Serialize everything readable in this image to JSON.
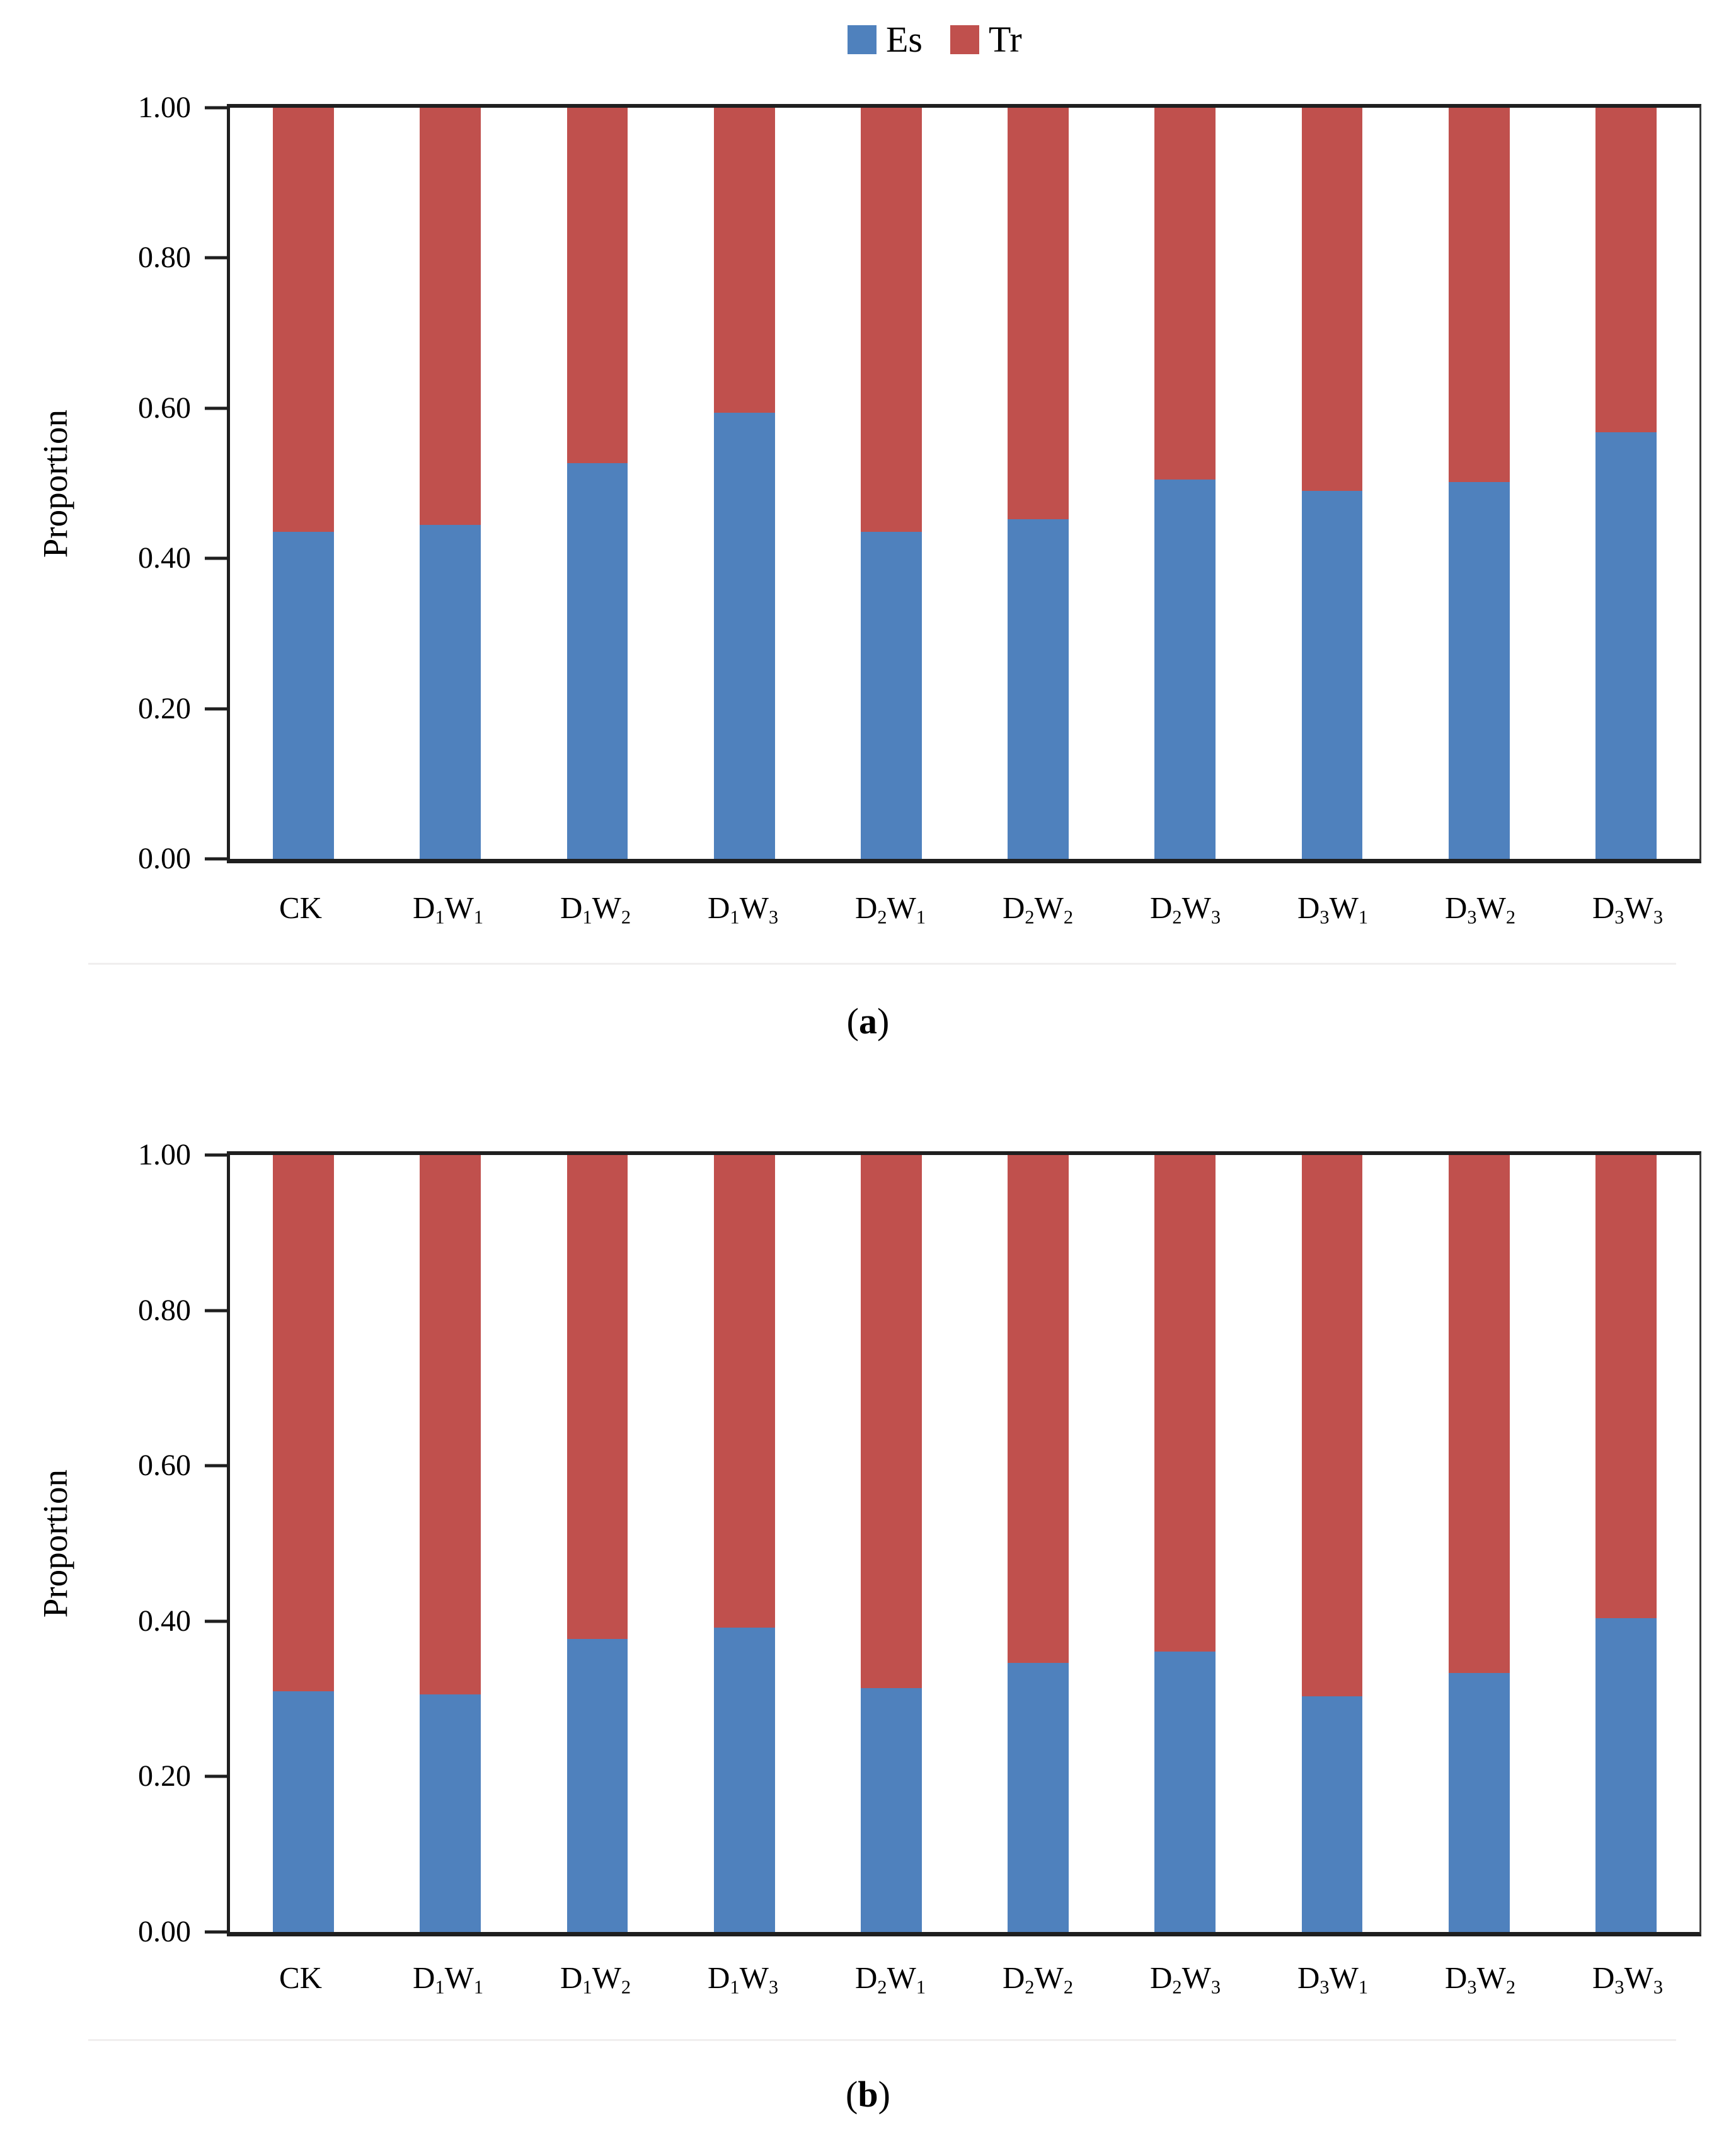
{
  "figure": {
    "background": "#ffffff"
  },
  "legend": {
    "position": "top-center",
    "items": [
      {
        "label": "Es",
        "color": "#4f81bd"
      },
      {
        "label": "Tr",
        "color": "#c0504d"
      }
    ]
  },
  "chart_data": [
    {
      "id": "a",
      "type": "bar",
      "stacked": true,
      "caption": "(a)",
      "ylabel": "Proportion",
      "ylim": [
        0,
        1
      ],
      "grid": false,
      "legend_position": "top-center",
      "yticks": [
        "0.00",
        "0.20",
        "0.40",
        "0.60",
        "0.80",
        "1.00"
      ],
      "categories": [
        "CK",
        "D₁W₁",
        "D₁W₂",
        "D₁W₃",
        "D₂W₁",
        "D₂W₂",
        "D₂W₃",
        "D₃W₁",
        "D₃W₂",
        "D₃W₃"
      ],
      "series": [
        {
          "name": "Es",
          "color": "#4f81bd",
          "values": [
            0.435,
            0.445,
            0.527,
            0.594,
            0.435,
            0.452,
            0.505,
            0.49,
            0.502,
            0.568
          ]
        },
        {
          "name": "Tr",
          "color": "#c0504d",
          "values": [
            0.565,
            0.555,
            0.473,
            0.406,
            0.565,
            0.548,
            0.495,
            0.51,
            0.498,
            0.432
          ]
        }
      ]
    },
    {
      "id": "b",
      "type": "bar",
      "stacked": true,
      "caption": "(b)",
      "ylabel": "Proportion",
      "ylim": [
        0,
        1
      ],
      "grid": false,
      "legend_position": "top-center",
      "yticks": [
        "0.00",
        "0.20",
        "0.40",
        "0.60",
        "0.80",
        "1.00"
      ],
      "categories": [
        "CK",
        "D₁W₁",
        "D₁W₂",
        "D₁W₃",
        "D₂W₁",
        "D₂W₂",
        "D₂W₃",
        "D₃W₁",
        "D₃W₂",
        "D₃W₃"
      ],
      "series": [
        {
          "name": "Es",
          "color": "#4f81bd",
          "values": [
            0.31,
            0.306,
            0.377,
            0.392,
            0.314,
            0.346,
            0.361,
            0.303,
            0.333,
            0.404
          ]
        },
        {
          "name": "Tr",
          "color": "#c0504d",
          "values": [
            0.69,
            0.694,
            0.623,
            0.608,
            0.686,
            0.654,
            0.639,
            0.697,
            0.667,
            0.596
          ]
        }
      ]
    }
  ]
}
